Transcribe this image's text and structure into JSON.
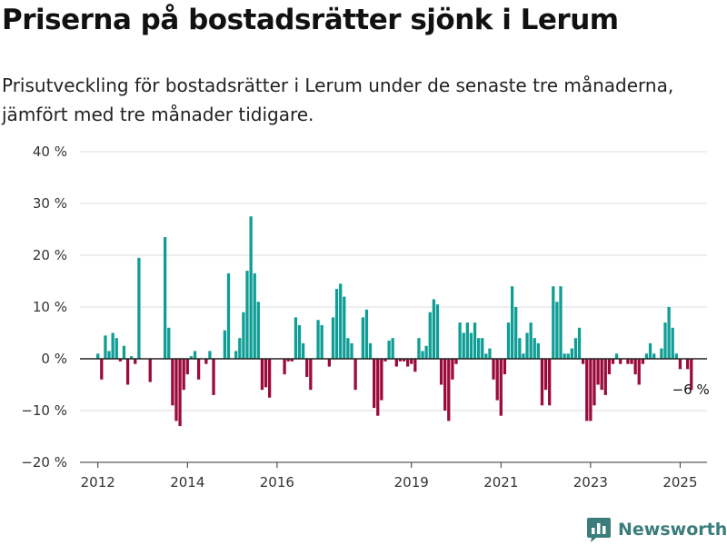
{
  "header": {
    "title": "Priserna på bostadsrätter sjönk i Lerum",
    "subtitle": "Prisutveckling för bostadsrätter i Lerum under de senaste tre månaderna, jämfört med tre månader tidigare."
  },
  "brand": {
    "name": "Newsworthy",
    "color": "#3a7d7b",
    "icon": "bar-chart-logo-icon"
  },
  "chart_data": {
    "type": "bar",
    "ylim": [
      -20,
      40
    ],
    "yticks": [
      -20,
      -10,
      0,
      10,
      20,
      30,
      40
    ],
    "ytick_labels": [
      "−20 %",
      "−10 %",
      "0 %",
      "10 %",
      "20 %",
      "30 %",
      "40 %"
    ],
    "xticks": [
      2012,
      2014,
      2016,
      2019,
      2021,
      2023,
      2025
    ],
    "xtick_labels": [
      "2012",
      "2014",
      "2016",
      "2019",
      "2021",
      "2023",
      "2025"
    ],
    "xlim": [
      2011.6,
      2025.6
    ],
    "grid": true,
    "positive_color": "#0e9e95",
    "negative_color": "#9b0a3c",
    "annotation": {
      "label": "−6 %",
      "value": -6
    },
    "bars": [
      {
        "x": 2012.0,
        "value": 1
      },
      {
        "x": 2012.083,
        "value": -4
      },
      {
        "x": 2012.167,
        "value": 4.5
      },
      {
        "x": 2012.25,
        "value": 1.5
      },
      {
        "x": 2012.333,
        "value": 5
      },
      {
        "x": 2012.417,
        "value": 4
      },
      {
        "x": 2012.5,
        "value": -0.5
      },
      {
        "x": 2012.583,
        "value": 2.5
      },
      {
        "x": 2012.667,
        "value": -5
      },
      {
        "x": 2012.75,
        "value": 0.5
      },
      {
        "x": 2012.833,
        "value": -1
      },
      {
        "x": 2012.917,
        "value": 19.5
      },
      {
        "x": 2013.167,
        "value": -4.5
      },
      {
        "x": 2013.5,
        "value": 23.5
      },
      {
        "x": 2013.583,
        "value": 6
      },
      {
        "x": 2013.667,
        "value": -9
      },
      {
        "x": 2013.75,
        "value": -12
      },
      {
        "x": 2013.833,
        "value": -13
      },
      {
        "x": 2013.917,
        "value": -6
      },
      {
        "x": 2014.0,
        "value": -3
      },
      {
        "x": 2014.083,
        "value": 0.5
      },
      {
        "x": 2014.167,
        "value": 1.5
      },
      {
        "x": 2014.25,
        "value": -4
      },
      {
        "x": 2014.417,
        "value": -1
      },
      {
        "x": 2014.5,
        "value": 1.5
      },
      {
        "x": 2014.583,
        "value": -7
      },
      {
        "x": 2014.833,
        "value": 5.5
      },
      {
        "x": 2014.917,
        "value": 16.5
      },
      {
        "x": 2015.083,
        "value": 1.5
      },
      {
        "x": 2015.167,
        "value": 4
      },
      {
        "x": 2015.25,
        "value": 9
      },
      {
        "x": 2015.333,
        "value": 17
      },
      {
        "x": 2015.417,
        "value": 27.5
      },
      {
        "x": 2015.5,
        "value": 16.5
      },
      {
        "x": 2015.583,
        "value": 11
      },
      {
        "x": 2015.667,
        "value": -6
      },
      {
        "x": 2015.75,
        "value": -5.5
      },
      {
        "x": 2015.833,
        "value": -7.5
      },
      {
        "x": 2016.167,
        "value": -3
      },
      {
        "x": 2016.25,
        "value": -0.5
      },
      {
        "x": 2016.333,
        "value": -0.5
      },
      {
        "x": 2016.417,
        "value": 8
      },
      {
        "x": 2016.5,
        "value": 6.5
      },
      {
        "x": 2016.583,
        "value": 3
      },
      {
        "x": 2016.667,
        "value": -3.5
      },
      {
        "x": 2016.75,
        "value": -6
      },
      {
        "x": 2016.917,
        "value": 7.5
      },
      {
        "x": 2017.0,
        "value": 6.5
      },
      {
        "x": 2017.167,
        "value": -1.5
      },
      {
        "x": 2017.25,
        "value": 8
      },
      {
        "x": 2017.333,
        "value": 13.5
      },
      {
        "x": 2017.417,
        "value": 14.5
      },
      {
        "x": 2017.5,
        "value": 12
      },
      {
        "x": 2017.583,
        "value": 4
      },
      {
        "x": 2017.667,
        "value": 3
      },
      {
        "x": 2017.75,
        "value": -6
      },
      {
        "x": 2017.917,
        "value": 8
      },
      {
        "x": 2018.0,
        "value": 9.5
      },
      {
        "x": 2018.083,
        "value": 3
      },
      {
        "x": 2018.167,
        "value": -9.5
      },
      {
        "x": 2018.25,
        "value": -11
      },
      {
        "x": 2018.333,
        "value": -8
      },
      {
        "x": 2018.417,
        "value": -0.5
      },
      {
        "x": 2018.5,
        "value": 3.5
      },
      {
        "x": 2018.583,
        "value": 4
      },
      {
        "x": 2018.667,
        "value": -1.5
      },
      {
        "x": 2018.75,
        "value": -0.5
      },
      {
        "x": 2018.833,
        "value": -0.5
      },
      {
        "x": 2018.917,
        "value": -1.5
      },
      {
        "x": 2019.0,
        "value": -1
      },
      {
        "x": 2019.083,
        "value": -2.5
      },
      {
        "x": 2019.167,
        "value": 4
      },
      {
        "x": 2019.25,
        "value": 1.5
      },
      {
        "x": 2019.333,
        "value": 2.5
      },
      {
        "x": 2019.417,
        "value": 9
      },
      {
        "x": 2019.5,
        "value": 11.5
      },
      {
        "x": 2019.583,
        "value": 10.5
      },
      {
        "x": 2019.667,
        "value": -5
      },
      {
        "x": 2019.75,
        "value": -10
      },
      {
        "x": 2019.833,
        "value": -12
      },
      {
        "x": 2019.917,
        "value": -4
      },
      {
        "x": 2020.0,
        "value": -1
      },
      {
        "x": 2020.083,
        "value": 7
      },
      {
        "x": 2020.167,
        "value": 5
      },
      {
        "x": 2020.25,
        "value": 7
      },
      {
        "x": 2020.333,
        "value": 5
      },
      {
        "x": 2020.417,
        "value": 7
      },
      {
        "x": 2020.5,
        "value": 4
      },
      {
        "x": 2020.583,
        "value": 4
      },
      {
        "x": 2020.667,
        "value": 1
      },
      {
        "x": 2020.75,
        "value": 2
      },
      {
        "x": 2020.833,
        "value": -4
      },
      {
        "x": 2020.917,
        "value": -8
      },
      {
        "x": 2021.0,
        "value": -11
      },
      {
        "x": 2021.083,
        "value": -3
      },
      {
        "x": 2021.167,
        "value": 7
      },
      {
        "x": 2021.25,
        "value": 14
      },
      {
        "x": 2021.333,
        "value": 10
      },
      {
        "x": 2021.417,
        "value": 4
      },
      {
        "x": 2021.5,
        "value": 1
      },
      {
        "x": 2021.583,
        "value": 5
      },
      {
        "x": 2021.667,
        "value": 7
      },
      {
        "x": 2021.75,
        "value": 4
      },
      {
        "x": 2021.833,
        "value": 3
      },
      {
        "x": 2021.917,
        "value": -9
      },
      {
        "x": 2022.0,
        "value": -6
      },
      {
        "x": 2022.083,
        "value": -9
      },
      {
        "x": 2022.167,
        "value": 14
      },
      {
        "x": 2022.25,
        "value": 11
      },
      {
        "x": 2022.333,
        "value": 14
      },
      {
        "x": 2022.417,
        "value": 1
      },
      {
        "x": 2022.5,
        "value": 1
      },
      {
        "x": 2022.583,
        "value": 2
      },
      {
        "x": 2022.667,
        "value": 4
      },
      {
        "x": 2022.75,
        "value": 6
      },
      {
        "x": 2022.833,
        "value": -1
      },
      {
        "x": 2022.917,
        "value": -12
      },
      {
        "x": 2023.0,
        "value": -12
      },
      {
        "x": 2023.083,
        "value": -9
      },
      {
        "x": 2023.167,
        "value": -5
      },
      {
        "x": 2023.25,
        "value": -6
      },
      {
        "x": 2023.333,
        "value": -7
      },
      {
        "x": 2023.417,
        "value": -3
      },
      {
        "x": 2023.5,
        "value": -1
      },
      {
        "x": 2023.583,
        "value": 1
      },
      {
        "x": 2023.667,
        "value": -1
      },
      {
        "x": 2023.833,
        "value": -1
      },
      {
        "x": 2023.917,
        "value": -1
      },
      {
        "x": 2024.0,
        "value": -3
      },
      {
        "x": 2024.083,
        "value": -5
      },
      {
        "x": 2024.167,
        "value": -1
      },
      {
        "x": 2024.25,
        "value": 1
      },
      {
        "x": 2024.333,
        "value": 3
      },
      {
        "x": 2024.417,
        "value": 1
      },
      {
        "x": 2024.583,
        "value": 2
      },
      {
        "x": 2024.667,
        "value": 7
      },
      {
        "x": 2024.75,
        "value": 10
      },
      {
        "x": 2024.833,
        "value": 6
      },
      {
        "x": 2024.917,
        "value": 1
      },
      {
        "x": 2025.0,
        "value": -2
      },
      {
        "x": 2025.167,
        "value": -2
      },
      {
        "x": 2025.25,
        "value": -6
      }
    ]
  }
}
